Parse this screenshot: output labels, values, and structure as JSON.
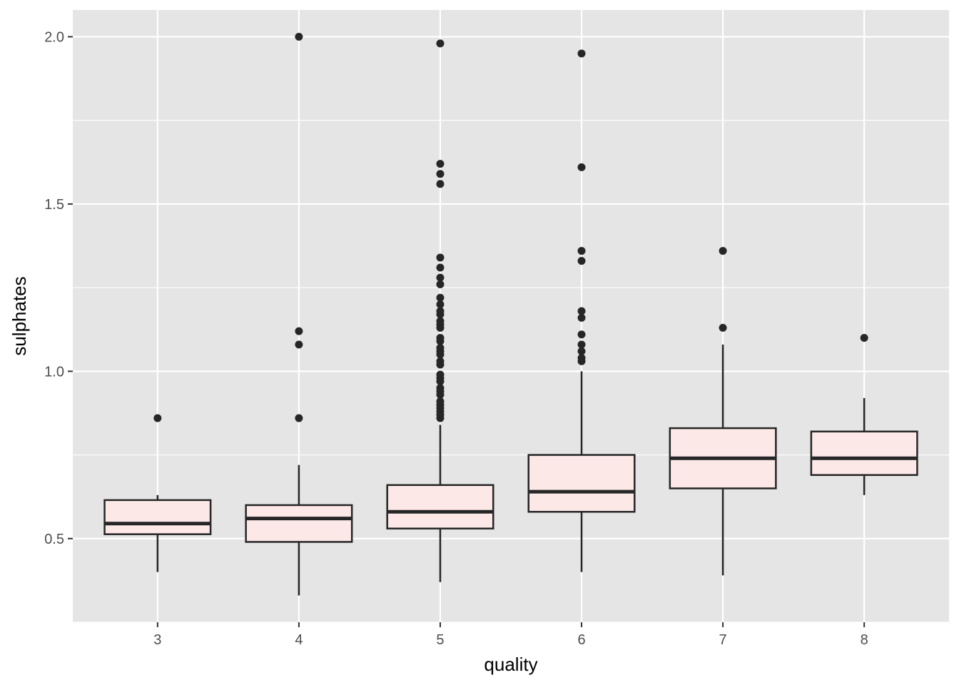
{
  "chart_data": {
    "type": "boxplot",
    "xlabel": "quality",
    "ylabel": "sulphates",
    "categories": [
      "3",
      "4",
      "5",
      "6",
      "7",
      "8"
    ],
    "ylim": [
      0.25,
      2.08
    ],
    "y_ticks": [
      0.5,
      1.0,
      1.5,
      2.0
    ],
    "y_tick_labels": [
      "0.5",
      "1.0",
      "1.5",
      "2.0"
    ],
    "grid": true,
    "colors": {
      "panel_background": "#e5e5e5",
      "grid": "#ffffff",
      "box_fill": "#fde8e8",
      "box_stroke": "#262626",
      "outlier": "#262626"
    },
    "boxes": [
      {
        "category": "3",
        "lower_whisker": 0.4,
        "q1": 0.513,
        "median": 0.545,
        "q3": 0.615,
        "upper_whisker": 0.63,
        "outliers": [
          0.86
        ]
      },
      {
        "category": "4",
        "lower_whisker": 0.33,
        "q1": 0.49,
        "median": 0.56,
        "q3": 0.6,
        "upper_whisker": 0.72,
        "outliers": [
          0.86,
          1.08,
          1.12,
          2.0
        ]
      },
      {
        "category": "5",
        "lower_whisker": 0.37,
        "q1": 0.53,
        "median": 0.58,
        "q3": 0.66,
        "upper_whisker": 0.84,
        "outliers": [
          0.86,
          0.87,
          0.88,
          0.89,
          0.9,
          0.91,
          0.93,
          0.94,
          0.95,
          0.97,
          0.98,
          0.99,
          1.02,
          1.03,
          1.05,
          1.06,
          1.07,
          1.09,
          1.1,
          1.13,
          1.14,
          1.15,
          1.17,
          1.18,
          1.2,
          1.22,
          1.26,
          1.28,
          1.31,
          1.34,
          1.56,
          1.59,
          1.62,
          1.98
        ]
      },
      {
        "category": "6",
        "lower_whisker": 0.4,
        "q1": 0.58,
        "median": 0.64,
        "q3": 0.75,
        "upper_whisker": 1.0,
        "outliers": [
          1.03,
          1.04,
          1.06,
          1.08,
          1.11,
          1.16,
          1.18,
          1.33,
          1.36,
          1.61,
          1.95
        ]
      },
      {
        "category": "7",
        "lower_whisker": 0.39,
        "q1": 0.65,
        "median": 0.74,
        "q3": 0.83,
        "upper_whisker": 1.08,
        "outliers": [
          1.13,
          1.36
        ]
      },
      {
        "category": "8",
        "lower_whisker": 0.63,
        "q1": 0.69,
        "median": 0.74,
        "q3": 0.82,
        "upper_whisker": 0.92,
        "outliers": [
          1.1
        ]
      }
    ]
  }
}
